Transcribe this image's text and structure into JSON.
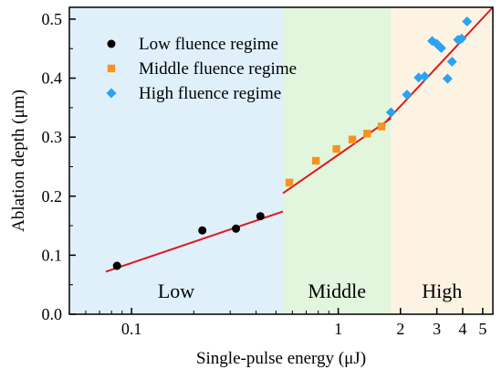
{
  "chart_data": {
    "type": "scatter",
    "xscale": "log",
    "xlim": [
      0.05,
      5.6
    ],
    "ylim": [
      0.0,
      0.52
    ],
    "xlabel": "Single-pulse energy (μJ)",
    "ylabel": "Ablation depth (μm)",
    "xticks": [
      0.1,
      1,
      2,
      3,
      4,
      5
    ],
    "xtick_labels": [
      "0.1",
      "1",
      "2",
      "3",
      "4",
      "5"
    ],
    "yticks": [
      0.0,
      0.1,
      0.2,
      0.3,
      0.4,
      0.5
    ],
    "ytick_labels": [
      "0.0",
      "0.1",
      "0.2",
      "0.3",
      "0.4",
      "0.5"
    ],
    "grid": false,
    "legend_position": "top-left",
    "regions": [
      {
        "label": "Low",
        "x_start": 0.05,
        "x_end": 0.54,
        "color": "#dff0fb"
      },
      {
        "label": "Middle",
        "x_start": 0.54,
        "x_end": 1.8,
        "color": "#e1f6dd"
      },
      {
        "label": "High",
        "x_start": 1.8,
        "x_end": 5.6,
        "color": "#fdf3e3"
      }
    ],
    "series": [
      {
        "name": "Low fluence regime",
        "marker": "circle",
        "color": "#000000",
        "points": [
          [
            0.085,
            0.082
          ],
          [
            0.22,
            0.142
          ],
          [
            0.32,
            0.145
          ],
          [
            0.42,
            0.166
          ]
        ]
      },
      {
        "name": "Middle fluence regime",
        "marker": "square",
        "color": "#f7931e",
        "points": [
          [
            0.58,
            0.223
          ],
          [
            0.78,
            0.26
          ],
          [
            0.98,
            0.28
          ],
          [
            1.17,
            0.296
          ],
          [
            1.38,
            0.306
          ],
          [
            1.62,
            0.318
          ]
        ]
      },
      {
        "name": "High fluence regime",
        "marker": "diamond",
        "color": "#2aa3f0",
        "points": [
          [
            1.8,
            0.342
          ],
          [
            2.15,
            0.372
          ],
          [
            2.45,
            0.401
          ],
          [
            2.62,
            0.403
          ],
          [
            2.85,
            0.463
          ],
          [
            3.0,
            0.458
          ],
          [
            3.15,
            0.451
          ],
          [
            3.38,
            0.399
          ],
          [
            3.55,
            0.428
          ],
          [
            3.8,
            0.465
          ],
          [
            3.95,
            0.467
          ],
          [
            4.2,
            0.496
          ]
        ]
      }
    ],
    "fit_lines": [
      {
        "color": "#e0191b",
        "points": [
          [
            0.075,
            0.072
          ],
          [
            0.54,
            0.174
          ]
        ]
      },
      {
        "color": "#e0191b",
        "points": [
          [
            0.54,
            0.205
          ],
          [
            1.8,
            0.332
          ]
        ]
      },
      {
        "color": "#e0191b",
        "points": [
          [
            1.72,
            0.328
          ],
          [
            5.6,
            0.52
          ]
        ]
      }
    ]
  }
}
